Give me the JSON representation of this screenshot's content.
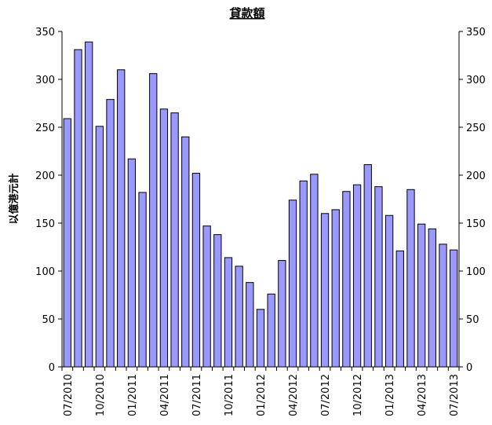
{
  "chart_data": {
    "type": "bar",
    "title": "貸款額",
    "y_label": "以億港元計",
    "categories": [
      "07/2010",
      null,
      null,
      "10/2010",
      null,
      null,
      "01/2011",
      null,
      null,
      "04/2011",
      null,
      null,
      "07/2011",
      null,
      null,
      "10/2011",
      null,
      null,
      "01/2012",
      null,
      null,
      "04/2012",
      null,
      null,
      "07/2012",
      null,
      null,
      "10/2012",
      null,
      null,
      "01/2013",
      null,
      null,
      "04/2013",
      null,
      null,
      "07/2013"
    ],
    "values": [
      259,
      331,
      339,
      251,
      279,
      310,
      217,
      182,
      306,
      269,
      265,
      240,
      202,
      147,
      138,
      114,
      105,
      88,
      60,
      76,
      111,
      174,
      194,
      201,
      160,
      164,
      183,
      190,
      211,
      188,
      158,
      121,
      185,
      149,
      144,
      128,
      122
    ],
    "color": "#9999ff",
    "ylim": [
      0,
      350
    ],
    "yticks": [
      0,
      50,
      100,
      150,
      200,
      250,
      300,
      350
    ],
    "grid": false
  }
}
